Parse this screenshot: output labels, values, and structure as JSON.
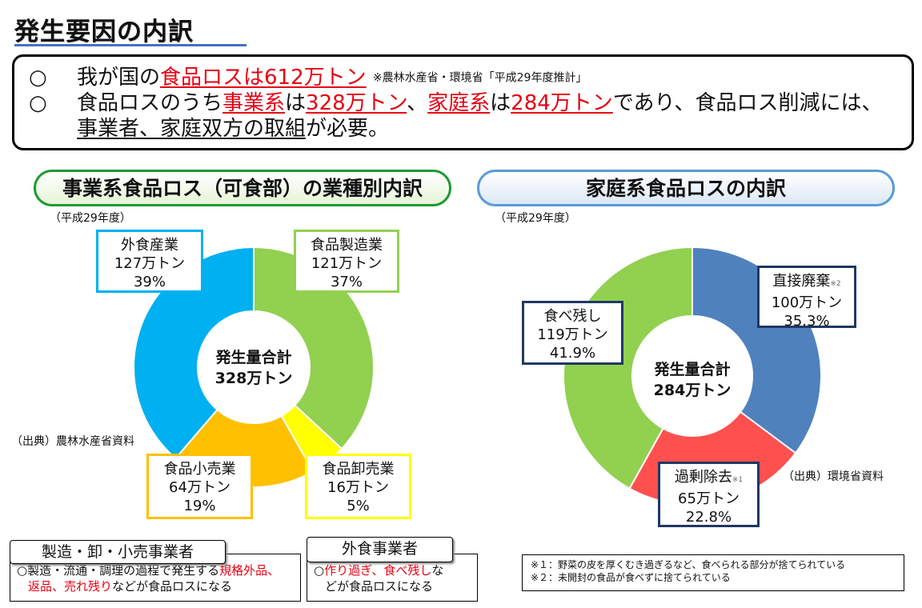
{
  "page_title": "発生要因の内訳",
  "summary": {
    "bullet": "○",
    "line1": {
      "pre": "我が国の",
      "red": "食品ロスは612万トン",
      "note": "※農林水産省・環境省「平成29年度推計」"
    },
    "line2": {
      "p1": "食品ロスのうち",
      "r1": "事業系",
      "p2": "は",
      "r2": "328万トン",
      "p3": "、",
      "r3": "家庭系",
      "p4": "は",
      "r4": "284万トン",
      "p5": "であり、食品ロス削減には、"
    },
    "line3": {
      "u1": "事業者、家庭双方の取組",
      "p1": "が必要。"
    }
  },
  "business": {
    "header": "事業系食品ロス（可食部）の業種別内訳",
    "year": "（平成29年度）",
    "source": "（出典）農林水産省資料",
    "center_line1": "発生量合計",
    "center_line2": "328万トン",
    "labels": [
      {
        "name": "外食産業",
        "amount": "127万トン",
        "pct": "39%"
      },
      {
        "name": "食品製造業",
        "amount": "121万トン",
        "pct": "37%"
      },
      {
        "name": "食品小売業",
        "amount": "64万トン",
        "pct": "19%"
      },
      {
        "name": "食品卸売業",
        "amount": "16万トン",
        "pct": "5%"
      }
    ]
  },
  "household": {
    "header": "家庭系食品ロスの内訳",
    "year": "（平成29年度）",
    "source": "（出典）環境省資料",
    "center_line1": "発生量合計",
    "center_line2": "284万トン",
    "labels": [
      {
        "name": "直接廃棄",
        "mark": "※2",
        "amount": "100万トン",
        "pct": "35.3%"
      },
      {
        "name": "過剰除去",
        "mark": "※1",
        "amount": "65万トン",
        "pct": "22.8%"
      },
      {
        "name": "食べ残し",
        "mark": "",
        "amount": "119万トン",
        "pct": "41.9%"
      }
    ],
    "footnotes": [
      "※１：野菜の皮を厚くむき過ぎるなど、食べられる部分が捨てられている",
      "※２：未開封の食品が食べずに捨てられている"
    ]
  },
  "bottom": {
    "mfr": {
      "tab": "製造・卸・小売事業者",
      "p1": "○製造・流通・調理の過程で発生する",
      "r1": "規格外品、",
      "r2": "返品、売れ残り",
      "p2": "などが食品ロスになる"
    },
    "food_service": {
      "tab": "外食事業者",
      "p1": "○",
      "r1": "作り過ぎ、食べ残し",
      "p2": "な",
      "p3": "どが食品ロスになる"
    }
  },
  "colors": {
    "food_service": "#00b0f0",
    "manufacturing": "#92d050",
    "wholesale": "#ffff00",
    "retail": "#ffc000",
    "direct_disposal": "#4f81bd",
    "excess_removal": "#ff5050",
    "leftovers": "#92d050"
  },
  "chart_data": [
    {
      "type": "pie",
      "title": "事業系食品ロス（可食部）の業種別内訳",
      "unit": "万トン",
      "total": 328,
      "categories": [
        "食品製造業",
        "食品卸売業",
        "食品小売業",
        "外食産業"
      ],
      "values": [
        121,
        16,
        64,
        127
      ],
      "percent": [
        37,
        5,
        19,
        39
      ],
      "colors": [
        "#92d050",
        "#ffff00",
        "#ffc000",
        "#00b0f0"
      ],
      "donut": true
    },
    {
      "type": "pie",
      "title": "家庭系食品ロスの内訳",
      "unit": "万トン",
      "total": 284,
      "categories": [
        "直接廃棄",
        "過剰除去",
        "食べ残し"
      ],
      "values": [
        100,
        65,
        119
      ],
      "percent": [
        35.3,
        22.8,
        41.9
      ],
      "colors": [
        "#4f81bd",
        "#ff5050",
        "#92d050"
      ],
      "donut": true
    }
  ]
}
